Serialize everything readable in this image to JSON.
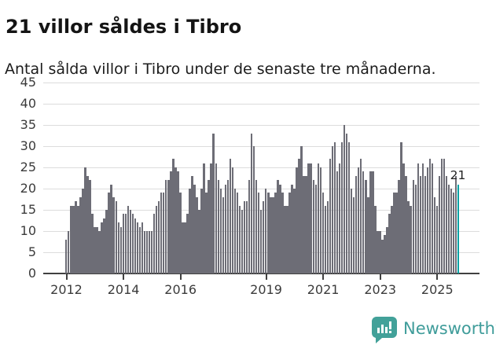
{
  "header": {
    "title": "21 villor såldes i Tibro",
    "subtitle": "Antal sålda villor i Tibro under de senaste tre månaderna."
  },
  "chart_data": {
    "type": "bar",
    "title": "21 villor såldes i Tibro",
    "subtitle": "Antal sålda villor i Tibro under de senaste tre månaderna.",
    "xlabel": "",
    "ylabel": "",
    "ylim": [
      0,
      45
    ],
    "yticks": [
      0,
      5,
      10,
      15,
      20,
      25,
      30,
      35,
      40,
      45
    ],
    "grid": true,
    "legend": "none",
    "x_unit": "month",
    "x_first_month": "2012-01",
    "x_last_month": "2025-10",
    "xtick_labels": [
      "2012",
      "2014",
      "2016",
      "2019",
      "2021",
      "2023",
      "2025"
    ],
    "xtick_month_indices": [
      0,
      24,
      48,
      84,
      108,
      132,
      156
    ],
    "bar_color": "#6d6d76",
    "highlight_color": "#00a2a5",
    "highlight": {
      "index": 165,
      "value": 21,
      "label": "21",
      "month": "2025-10"
    },
    "series": [
      {
        "name": "Antal sålda villor (rullande tre månader)",
        "values": [
          8,
          10,
          16,
          16,
          17,
          16,
          18,
          20,
          25,
          23,
          22,
          14,
          11,
          11,
          10,
          12,
          13,
          15,
          19,
          21,
          18,
          17,
          12,
          11,
          14,
          14,
          16,
          15,
          14,
          13,
          12,
          11,
          12,
          10,
          10,
          10,
          10,
          14,
          16,
          17,
          19,
          19,
          22,
          22,
          24,
          27,
          25,
          24,
          19,
          12,
          12,
          14,
          20,
          23,
          21,
          18,
          15,
          20,
          26,
          19,
          22,
          26,
          33,
          26,
          22,
          20,
          18,
          21,
          22,
          27,
          25,
          20,
          19,
          16,
          15,
          17,
          17,
          22,
          33,
          30,
          22,
          19,
          15,
          17,
          20,
          19,
          18,
          18,
          19,
          22,
          21,
          19,
          16,
          16,
          19,
          21,
          20,
          25,
          27,
          30,
          23,
          23,
          26,
          26,
          22,
          21,
          26,
          25,
          19,
          16,
          17,
          27,
          30,
          31,
          24,
          26,
          31,
          35,
          33,
          31,
          20,
          18,
          23,
          25,
          27,
          24,
          22,
          18,
          24,
          24,
          16,
          10,
          10,
          8,
          9,
          11,
          14,
          16,
          19,
          19,
          22,
          31,
          26,
          23,
          17,
          16,
          22,
          21,
          26,
          23,
          26,
          23,
          25,
          27,
          26,
          18,
          16,
          23,
          27,
          27,
          23,
          21,
          20,
          19,
          23,
          21
        ]
      }
    ]
  },
  "footer": {
    "brand": "Newsworthy",
    "brand_color": "#3f9c9a",
    "logo_icon": "speech-bubble-bar-chart-icon"
  }
}
